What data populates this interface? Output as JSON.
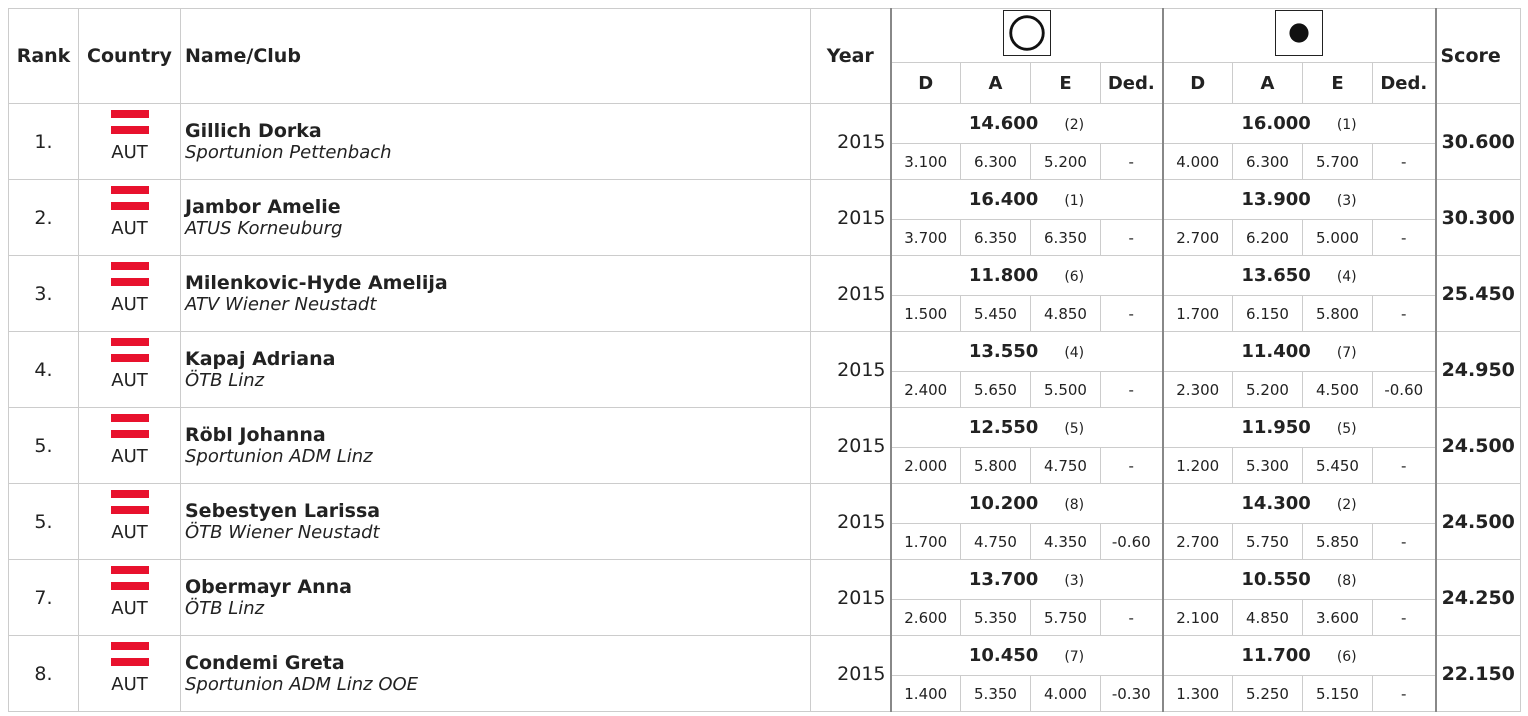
{
  "header": {
    "rank": "Rank",
    "country": "Country",
    "name": "Name/Club",
    "year": "Year",
    "sub": [
      "D",
      "A",
      "E",
      "Ded."
    ],
    "score": "Score"
  },
  "rows": [
    {
      "rank": "1.",
      "country": "AUT",
      "name": "Gillich Dorka",
      "club": "Sportunion Pettenbach",
      "year": "2015",
      "app1": {
        "total": "14.600",
        "place": "(2)",
        "parts": [
          "3.100",
          "6.300",
          "5.200",
          "-"
        ]
      },
      "app2": {
        "total": "16.000",
        "place": "(1)",
        "parts": [
          "4.000",
          "6.300",
          "5.700",
          "-"
        ]
      },
      "score": "30.600"
    },
    {
      "rank": "2.",
      "country": "AUT",
      "name": "Jambor Amelie",
      "club": "ATUS Korneuburg",
      "year": "2015",
      "app1": {
        "total": "16.400",
        "place": "(1)",
        "parts": [
          "3.700",
          "6.350",
          "6.350",
          "-"
        ]
      },
      "app2": {
        "total": "13.900",
        "place": "(3)",
        "parts": [
          "2.700",
          "6.200",
          "5.000",
          "-"
        ]
      },
      "score": "30.300"
    },
    {
      "rank": "3.",
      "country": "AUT",
      "name": "Milenkovic-Hyde Amelija",
      "club": "ATV Wiener Neustadt",
      "year": "2015",
      "app1": {
        "total": "11.800",
        "place": "(6)",
        "parts": [
          "1.500",
          "5.450",
          "4.850",
          "-"
        ]
      },
      "app2": {
        "total": "13.650",
        "place": "(4)",
        "parts": [
          "1.700",
          "6.150",
          "5.800",
          "-"
        ]
      },
      "score": "25.450"
    },
    {
      "rank": "4.",
      "country": "AUT",
      "name": "Kapaj Adriana",
      "club": "ÖTB Linz",
      "year": "2015",
      "app1": {
        "total": "13.550",
        "place": "(4)",
        "parts": [
          "2.400",
          "5.650",
          "5.500",
          "-"
        ]
      },
      "app2": {
        "total": "11.400",
        "place": "(7)",
        "parts": [
          "2.300",
          "5.200",
          "4.500",
          "-0.60"
        ]
      },
      "score": "24.950"
    },
    {
      "rank": "5.",
      "country": "AUT",
      "name": "Röbl Johanna",
      "club": "Sportunion ADM Linz",
      "year": "2015",
      "app1": {
        "total": "12.550",
        "place": "(5)",
        "parts": [
          "2.000",
          "5.800",
          "4.750",
          "-"
        ]
      },
      "app2": {
        "total": "11.950",
        "place": "(5)",
        "parts": [
          "1.200",
          "5.300",
          "5.450",
          "-"
        ]
      },
      "score": "24.500"
    },
    {
      "rank": "5.",
      "country": "AUT",
      "name": "Sebestyen Larissa",
      "club": "ÖTB Wiener Neustadt",
      "year": "2015",
      "app1": {
        "total": "10.200",
        "place": "(8)",
        "parts": [
          "1.700",
          "4.750",
          "4.350",
          "-0.60"
        ]
      },
      "app2": {
        "total": "14.300",
        "place": "(2)",
        "parts": [
          "2.700",
          "5.750",
          "5.850",
          "-"
        ]
      },
      "score": "24.500"
    },
    {
      "rank": "7.",
      "country": "AUT",
      "name": "Obermayr Anna",
      "club": "ÖTB Linz",
      "year": "2015",
      "app1": {
        "total": "13.700",
        "place": "(3)",
        "parts": [
          "2.600",
          "5.350",
          "5.750",
          "-"
        ]
      },
      "app2": {
        "total": "10.550",
        "place": "(8)",
        "parts": [
          "2.100",
          "4.850",
          "3.600",
          "-"
        ]
      },
      "score": "24.250"
    },
    {
      "rank": "8.",
      "country": "AUT",
      "name": "Condemi Greta",
      "club": "Sportunion ADM Linz OOE",
      "year": "2015",
      "app1": {
        "total": "10.450",
        "place": "(7)",
        "parts": [
          "1.400",
          "5.350",
          "4.000",
          "-0.30"
        ]
      },
      "app2": {
        "total": "11.700",
        "place": "(6)",
        "parts": [
          "1.300",
          "5.250",
          "5.150",
          "-"
        ]
      },
      "score": "22.150"
    }
  ]
}
